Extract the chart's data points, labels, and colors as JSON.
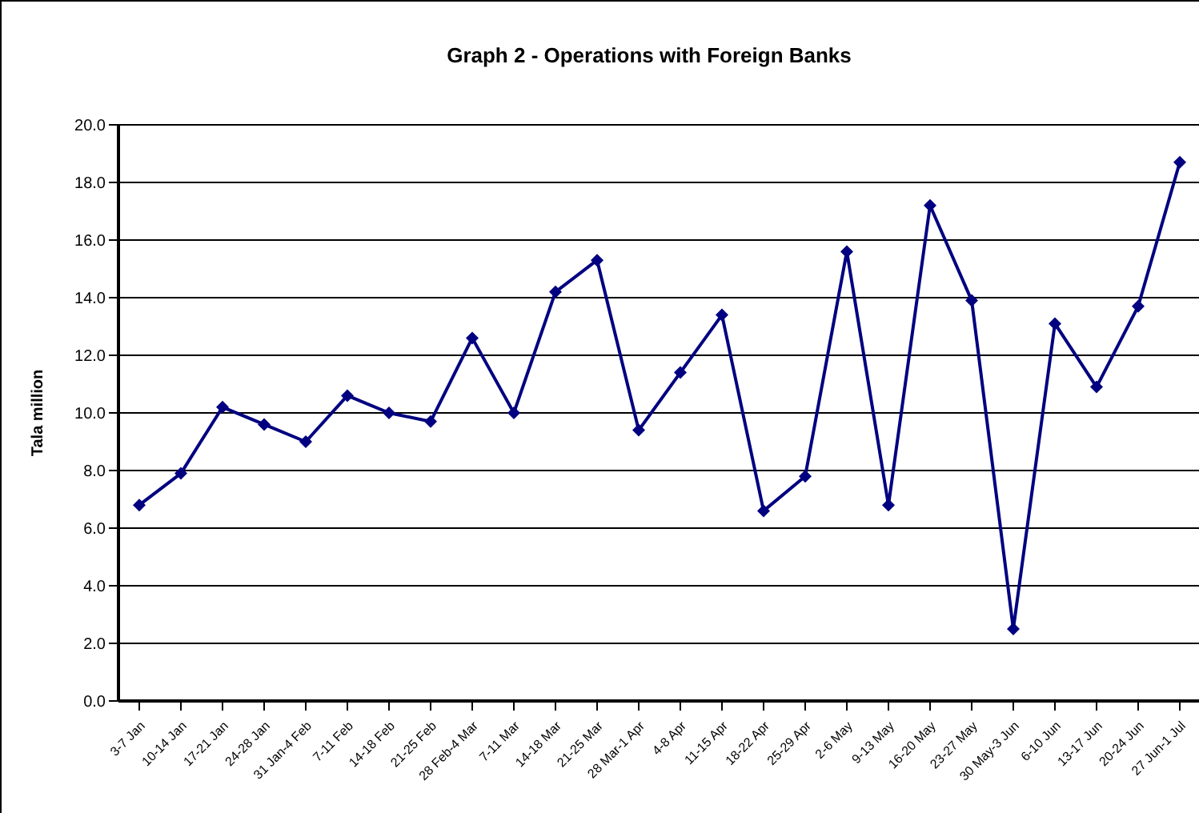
{
  "chart_data": {
    "type": "line",
    "title": "Graph 2 - Operations with Foreign Banks",
    "ylabel": "Tala million",
    "categories": [
      "3-7 Jan",
      "10-14 Jan",
      "17-21 Jan",
      "24-28 Jan",
      "31 Jan-4 Feb",
      "7-11 Feb",
      "14-18 Feb",
      "21-25 Feb",
      "28 Feb-4 Mar",
      "7-11 Mar",
      "14-18 Mar",
      "21-25 Mar",
      "28 Mar-1 Apr",
      "4-8 Apr",
      "11-15 Apr",
      "18-22 Apr",
      "25-29 Apr",
      "2-6 May",
      "9-13 May",
      "16-20 May",
      "23-27 May",
      "30 May-3 Jun",
      "6-10 Jun",
      "13-17 Jun",
      "20-24 Jun",
      "27 Jun-1 Jul"
    ],
    "series": [
      {
        "color": "#000080",
        "values": [
          6.8,
          7.9,
          10.2,
          9.6,
          9.0,
          10.6,
          10.0,
          9.7,
          12.6,
          10.0,
          14.2,
          15.3,
          9.4,
          11.4,
          13.4,
          6.6,
          7.8,
          15.6,
          6.8,
          17.2,
          13.9,
          2.5,
          13.1,
          10.9,
          13.7,
          18.7
        ]
      }
    ],
    "ylim": [
      0,
      20
    ],
    "yticks": [
      {
        "value": 0,
        "label": "0.0"
      },
      {
        "value": 2,
        "label": "2.0"
      },
      {
        "value": 4,
        "label": "4.0"
      },
      {
        "value": 6,
        "label": "6.0"
      },
      {
        "value": 8,
        "label": "8.0"
      },
      {
        "value": 10,
        "label": "10.0"
      },
      {
        "value": 12,
        "label": "12.0"
      },
      {
        "value": 14,
        "label": "14.0"
      },
      {
        "value": 16,
        "label": "16.0"
      },
      {
        "value": 18,
        "label": "18.0"
      },
      {
        "value": 20,
        "label": "20.0"
      }
    ],
    "grid": "y",
    "marker": "diamond",
    "line_style": "solid",
    "legend": false
  }
}
